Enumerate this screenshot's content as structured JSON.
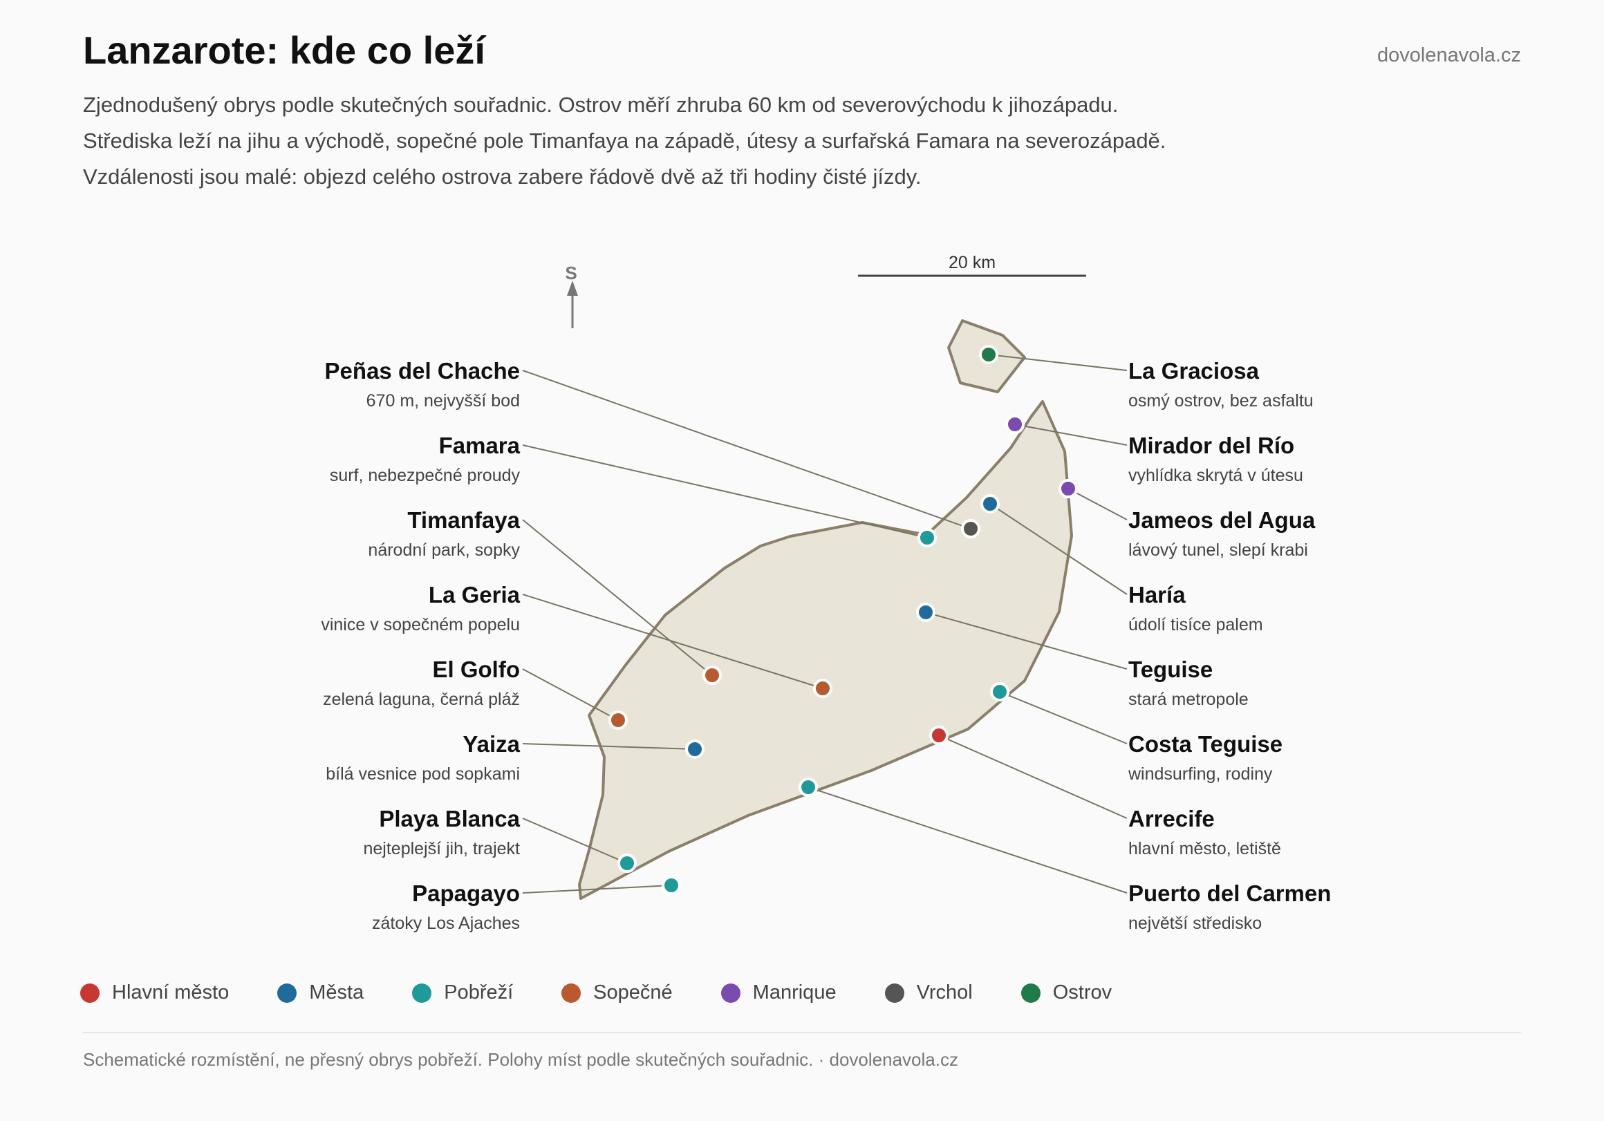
{
  "header": {
    "title": "Lanzarote: kde co leží",
    "site": "dovolenavola.cz",
    "intro": [
      "Zjednodušený obrys podle skutečných souřadnic. Ostrov měří zhruba 60 km od severovýchodu k jihozápadu.",
      "Střediska leží na jihu a východě, sopečné pole Timanfaya na západě, útesy a surfařská Famara na severozápadě.",
      "Vzdálenosti jsou malé: objezd celého ostrova zabere řádově dvě až tři hodiny čisté jízdy."
    ]
  },
  "map": {
    "north_label": "S",
    "scale_label": "20 km",
    "island_fill": "#e8e4d8",
    "island_stroke": "#8a7f68",
    "categories": {
      "capital": {
        "label": "Hlavní město",
        "color": "#c83732"
      },
      "town": {
        "label": "Města",
        "color": "#1f6c9c"
      },
      "coast": {
        "label": "Pobřeží",
        "color": "#1e9a9a"
      },
      "volcanic": {
        "label": "Sopečné",
        "color": "#b85a2e"
      },
      "manrique": {
        "label": "Manrique",
        "color": "#7b4bb0"
      },
      "peak": {
        "label": "Vrchol",
        "color": "#555555"
      },
      "island": {
        "label": "Ostrov",
        "color": "#1e7c4a"
      }
    },
    "legend_order": [
      "capital",
      "town",
      "coast",
      "volcanic",
      "manrique",
      "peak",
      "island"
    ],
    "places_left": [
      {
        "id": "penas",
        "name": "Peñas del Chache",
        "note": "670 m, nejvyšší bod",
        "category": "peak"
      },
      {
        "id": "famara",
        "name": "Famara",
        "note": "surf, nebezpečné proudy",
        "category": "coast"
      },
      {
        "id": "timanfaya",
        "name": "Timanfaya",
        "note": "národní park, sopky",
        "category": "volcanic"
      },
      {
        "id": "lageria",
        "name": "La Geria",
        "note": "vinice v sopečném popelu",
        "category": "volcanic"
      },
      {
        "id": "elgolfo",
        "name": "El Golfo",
        "note": "zelená laguna, černá pláž",
        "category": "volcanic"
      },
      {
        "id": "yaiza",
        "name": "Yaiza",
        "note": "bílá vesnice pod sopkami",
        "category": "town"
      },
      {
        "id": "playablanca",
        "name": "Playa Blanca",
        "note": "nejteplejší jih, trajekt",
        "category": "coast"
      },
      {
        "id": "papagayo",
        "name": "Papagayo",
        "note": "zátoky Los Ajaches",
        "category": "coast"
      }
    ],
    "places_right": [
      {
        "id": "graciosa",
        "name": "La Graciosa",
        "note": "osmý ostrov, bez asfaltu",
        "category": "island"
      },
      {
        "id": "mirador",
        "name": "Mirador del Río",
        "note": "vyhlídka skrytá v útesu",
        "category": "manrique"
      },
      {
        "id": "jameos",
        "name": "Jameos del Agua",
        "note": "lávový tunel, slepí krabi",
        "category": "manrique"
      },
      {
        "id": "haria",
        "name": "Haría",
        "note": "údolí tisíce palem",
        "category": "town"
      },
      {
        "id": "teguise",
        "name": "Teguise",
        "note": "stará metropole",
        "category": "town"
      },
      {
        "id": "costateguise",
        "name": "Costa Teguise",
        "note": "windsurfing, rodiny",
        "category": "coast"
      },
      {
        "id": "arrecife",
        "name": "Arrecife",
        "note": "hlavní město, letiště",
        "category": "capital"
      },
      {
        "id": "puerto",
        "name": "Puerto del Carmen",
        "note": "největší středisko",
        "category": "coast"
      }
    ]
  },
  "footer": "Schematické rozmístění, ne přesný obrys pobřeží. Polohy míst podle skutečných souřadnic. · dovolenavola.cz"
}
